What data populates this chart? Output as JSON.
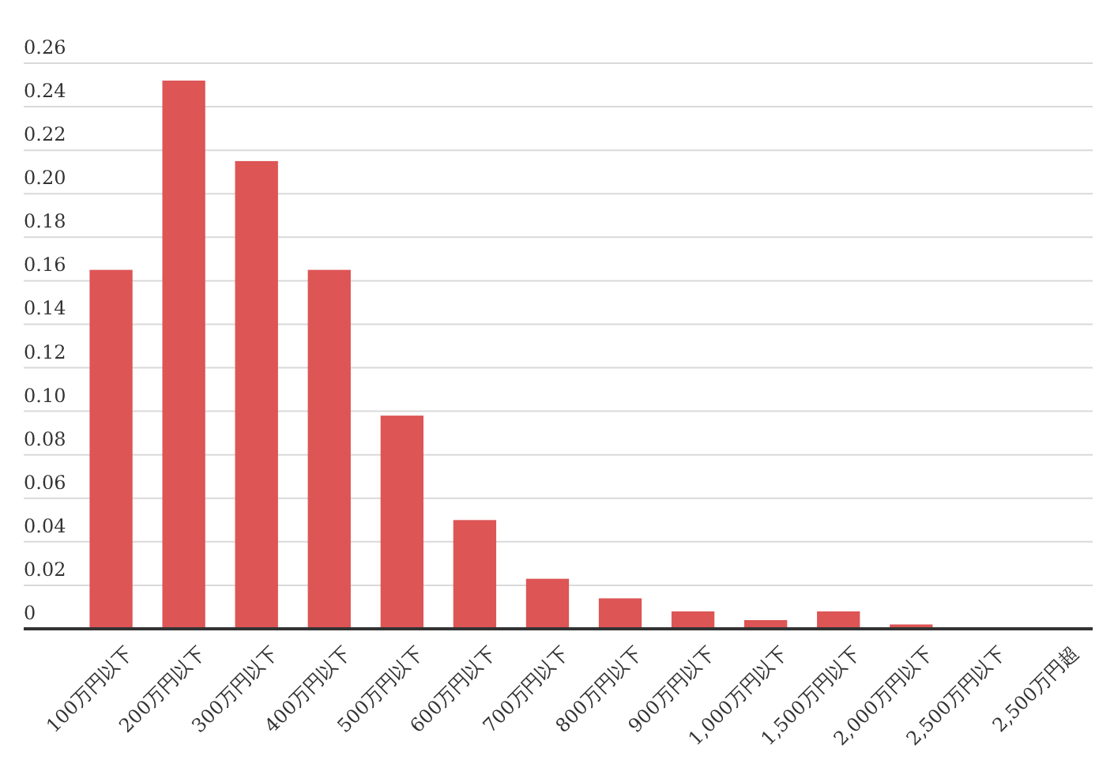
{
  "chart_data": {
    "type": "bar",
    "categories": [
      "100万円以下",
      "200万円以下",
      "300万円以下",
      "400万円以下",
      "500万円以下",
      "600万円以下",
      "700万円以下",
      "800万円以下",
      "900万円以下",
      "1,000万円以下",
      "1,500万円以下",
      "2,000万円以下",
      "2,500万円以下",
      "2,500万円超"
    ],
    "values": [
      0.165,
      0.252,
      0.215,
      0.165,
      0.098,
      0.05,
      0.023,
      0.014,
      0.008,
      0.004,
      0.008,
      0.002,
      0,
      0
    ],
    "color": "#dd5555",
    "ylim": [
      0,
      0.26
    ],
    "yticks": [
      0,
      {
        "value": 0.02,
        "label": "0.02"
      },
      {
        "value": 0.04,
        "label": "0.04"
      },
      {
        "value": 0.06,
        "label": "0.06"
      },
      {
        "value": 0.08,
        "label": "0.08"
      },
      {
        "value": 0.1,
        "label": "0.10"
      },
      {
        "value": 0.12,
        "label": "0.12"
      },
      {
        "value": 0.14,
        "label": "0.14"
      },
      {
        "value": 0.16,
        "label": "0.16"
      },
      {
        "value": 0.18,
        "label": "0.18"
      },
      {
        "value": 0.2,
        "label": "0.20"
      },
      {
        "value": 0.22,
        "label": "0.22"
      },
      {
        "value": 0.24,
        "label": "0.24"
      },
      {
        "value": 0.26,
        "label": "0.26"
      }
    ],
    "grid": "y"
  }
}
